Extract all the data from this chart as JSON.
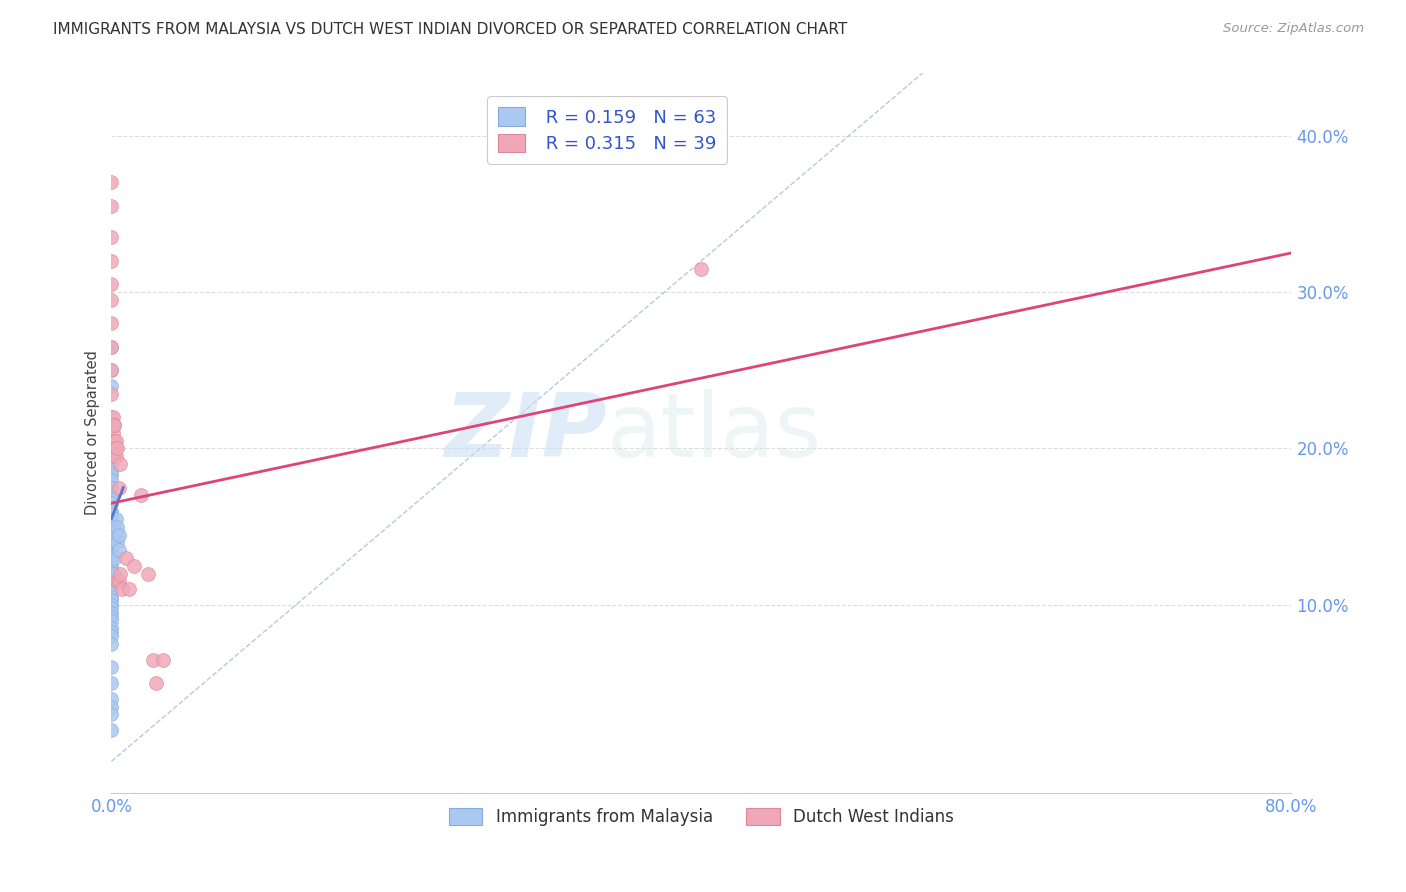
{
  "title": "IMMIGRANTS FROM MALAYSIA VS DUTCH WEST INDIAN DIVORCED OR SEPARATED CORRELATION CHART",
  "source": "Source: ZipAtlas.com",
  "ylabel": "Divorced or Separated",
  "legend1_R": "0.159",
  "legend1_N": "63",
  "legend2_R": "0.315",
  "legend2_N": "39",
  "blue_color": "#aac8f0",
  "blue_edge_color": "#88aadd",
  "pink_color": "#f0a8b8",
  "pink_edge_color": "#dd8899",
  "blue_line_color": "#5577cc",
  "pink_line_color": "#dd4477",
  "dashed_color": "#aabbcc",
  "blue_label": "Immigrants from Malaysia",
  "pink_label": "Dutch West Indians",
  "watermark_zip": "ZIP",
  "watermark_atlas": "atlas",
  "xlim": [
    0.0,
    0.8
  ],
  "ylim": [
    -0.02,
    0.44
  ],
  "ytick_vals": [
    0.1,
    0.2,
    0.3,
    0.4
  ],
  "ytick_labels": [
    "10.0%",
    "20.0%",
    "30.0%",
    "40.0%"
  ],
  "xtick_vals": [
    0.0,
    0.8
  ],
  "xtick_labels": [
    "0.0%",
    "80.0%"
  ],
  "blue_scatter_x": [
    0.0,
    0.0,
    0.0,
    0.0,
    0.0,
    0.0,
    0.0,
    0.0,
    0.0,
    0.0,
    0.0,
    0.0,
    0.0,
    0.0,
    0.0,
    0.0,
    0.0,
    0.0,
    0.0,
    0.0,
    0.0,
    0.0,
    0.0,
    0.0,
    0.0,
    0.0,
    0.0,
    0.0,
    0.0,
    0.0,
    0.0,
    0.0,
    0.0,
    0.0,
    0.0,
    0.0,
    0.0,
    0.0,
    0.0,
    0.0,
    0.0,
    0.0,
    0.0,
    0.0,
    0.0,
    0.0,
    0.002,
    0.002,
    0.002,
    0.002,
    0.003,
    0.003,
    0.004,
    0.004,
    0.005,
    0.005,
    0.0,
    0.0,
    0.0,
    0.0,
    0.0,
    0.0,
    0.0
  ],
  "blue_scatter_y": [
    0.265,
    0.25,
    0.24,
    0.22,
    0.2,
    0.195,
    0.19,
    0.185,
    0.183,
    0.18,
    0.175,
    0.17,
    0.168,
    0.165,
    0.16,
    0.158,
    0.155,
    0.153,
    0.15,
    0.148,
    0.145,
    0.142,
    0.14,
    0.138,
    0.135,
    0.133,
    0.13,
    0.128,
    0.125,
    0.122,
    0.12,
    0.118,
    0.115,
    0.112,
    0.11,
    0.108,
    0.105,
    0.103,
    0.1,
    0.098,
    0.095,
    0.092,
    0.09,
    0.085,
    0.083,
    0.08,
    0.15,
    0.14,
    0.13,
    0.12,
    0.155,
    0.145,
    0.15,
    0.14,
    0.145,
    0.135,
    0.075,
    0.06,
    0.05,
    0.04,
    0.035,
    0.03,
    0.02
  ],
  "pink_scatter_x": [
    0.0,
    0.0,
    0.0,
    0.0,
    0.0,
    0.0,
    0.0,
    0.0,
    0.0,
    0.0,
    0.001,
    0.001,
    0.001,
    0.001,
    0.001,
    0.002,
    0.002,
    0.002,
    0.002,
    0.002,
    0.003,
    0.003,
    0.003,
    0.004,
    0.004,
    0.005,
    0.005,
    0.006,
    0.006,
    0.007,
    0.01,
    0.012,
    0.015,
    0.02,
    0.025,
    0.028,
    0.035,
    0.4,
    0.03
  ],
  "pink_scatter_y": [
    0.37,
    0.355,
    0.335,
    0.32,
    0.305,
    0.295,
    0.28,
    0.265,
    0.25,
    0.235,
    0.22,
    0.215,
    0.21,
    0.205,
    0.2,
    0.215,
    0.205,
    0.195,
    0.215,
    0.205,
    0.205,
    0.2,
    0.195,
    0.2,
    0.115,
    0.175,
    0.115,
    0.19,
    0.12,
    0.11,
    0.13,
    0.11,
    0.125,
    0.17,
    0.12,
    0.065,
    0.065,
    0.315,
    0.05
  ],
  "blue_line_x": [
    0.0,
    0.008
  ],
  "blue_line_y": [
    0.155,
    0.175
  ],
  "pink_line_x": [
    0.0,
    0.8
  ],
  "pink_line_y": [
    0.165,
    0.325
  ],
  "dashed_line_x": [
    0.0,
    0.55
  ],
  "dashed_line_y": [
    0.0,
    0.44
  ]
}
